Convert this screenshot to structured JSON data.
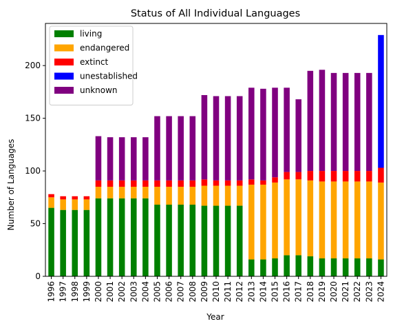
{
  "chart_data": {
    "type": "bar",
    "stacked": true,
    "title": "Status of All Individual Languages",
    "xlabel": "Year",
    "ylabel": "Number of Languages",
    "ylim": [
      0,
      240
    ],
    "yticks": [
      0,
      50,
      100,
      150,
      200
    ],
    "yticks_labels": [
      "0",
      "50",
      "100",
      "150",
      "200"
    ],
    "legend_position": "top-left",
    "categories": [
      "1996",
      "1997",
      "1998",
      "1999",
      "2000",
      "2001",
      "2002",
      "2003",
      "2004",
      "2005",
      "2006",
      "2007",
      "2008",
      "2009",
      "2010",
      "2011",
      "2012",
      "2013",
      "2014",
      "2015",
      "2016",
      "2017",
      "2018",
      "2019",
      "2020",
      "2021",
      "2022",
      "2023",
      "2024"
    ],
    "series": [
      {
        "name": "living",
        "color": "#008000",
        "values": [
          65,
          63,
          63,
          63,
          74,
          74,
          74,
          74,
          74,
          68,
          68,
          68,
          68,
          67,
          67,
          67,
          67,
          16,
          16,
          17,
          20,
          20,
          19,
          17,
          17,
          17,
          17,
          17,
          16
        ]
      },
      {
        "name": "endangered",
        "color": "#ffa500",
        "values": [
          10,
          10,
          10,
          10,
          11,
          11,
          11,
          11,
          11,
          17,
          17,
          17,
          17,
          19,
          19,
          19,
          19,
          71,
          71,
          72,
          72,
          72,
          72,
          73,
          73,
          73,
          73,
          73,
          73
        ]
      },
      {
        "name": "extinct",
        "color": "#ff0000",
        "values": [
          3,
          3,
          3,
          3,
          6,
          6,
          6,
          6,
          6,
          6,
          6,
          6,
          6,
          6,
          5,
          5,
          5,
          5,
          4,
          5,
          7,
          7,
          9,
          10,
          10,
          10,
          10,
          10,
          14
        ]
      },
      {
        "name": "unestablished",
        "color": "#0000ff",
        "values": [
          0,
          0,
          0,
          0,
          0,
          0,
          0,
          0,
          0,
          0,
          0,
          0,
          0,
          0,
          0,
          0,
          0,
          0,
          0,
          0,
          0,
          0,
          0,
          0,
          0,
          0,
          0,
          0,
          126
        ]
      },
      {
        "name": "unknown",
        "color": "#800080",
        "values": [
          0,
          0,
          0,
          0,
          42,
          41,
          41,
          41,
          41,
          61,
          61,
          61,
          61,
          80,
          80,
          80,
          80,
          87,
          87,
          85,
          80,
          69,
          95,
          96,
          93,
          93,
          93,
          93,
          0
        ]
      }
    ]
  }
}
